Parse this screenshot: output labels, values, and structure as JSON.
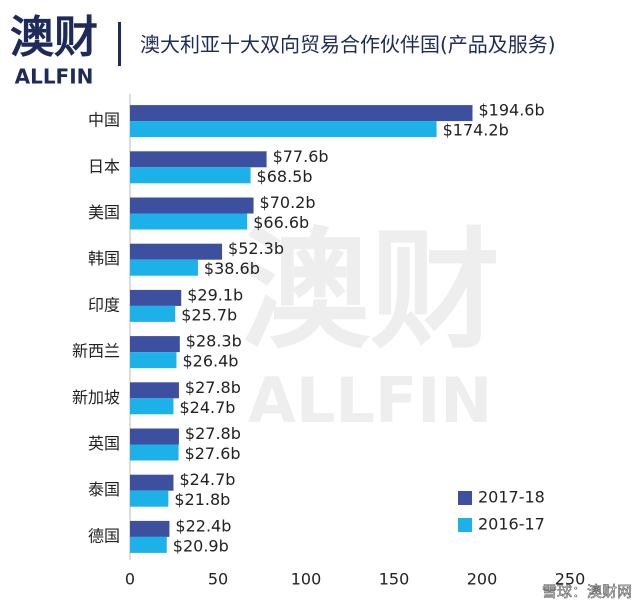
{
  "logo": {
    "name": "澳财",
    "brand": "ALLFIN"
  },
  "watermark": "雪球：澳财网",
  "chart_data": {
    "type": "hbar",
    "title": "澳大利亚十大双向贸易合作伙伴国(产品及服务)",
    "categories": [
      "中国",
      "日本",
      "美国",
      "韩国",
      "印度",
      "新西兰",
      "新加坡",
      "英国",
      "泰国",
      "德国"
    ],
    "series": [
      {
        "name": "2017-18",
        "color": "#3d4f9f",
        "values": [
          194.6,
          77.6,
          70.2,
          52.3,
          29.1,
          28.3,
          27.8,
          27.8,
          24.7,
          22.4
        ],
        "value_labels": [
          "$194.6b",
          "$77.6b",
          "$70.2b",
          "$52.3b",
          "$29.1b",
          "$28.3b",
          "$27.8b",
          "$27.8b",
          "$24.7b",
          "$22.4b"
        ]
      },
      {
        "name": "2016-17",
        "color": "#1cb1e8",
        "values": [
          174.2,
          68.5,
          66.6,
          38.6,
          25.7,
          26.4,
          24.7,
          27.6,
          21.8,
          20.9
        ],
        "value_labels": [
          "$174.2b",
          "$68.5b",
          "$66.6b",
          "$38.6b",
          "$25.7b",
          "$26.4b",
          "$24.7b",
          "$27.6b",
          "$21.8b",
          "$20.9b"
        ]
      }
    ],
    "xlim": [
      0,
      250
    ],
    "xticks": [
      0,
      50,
      100,
      150,
      200,
      250
    ],
    "legend": "lower right"
  }
}
